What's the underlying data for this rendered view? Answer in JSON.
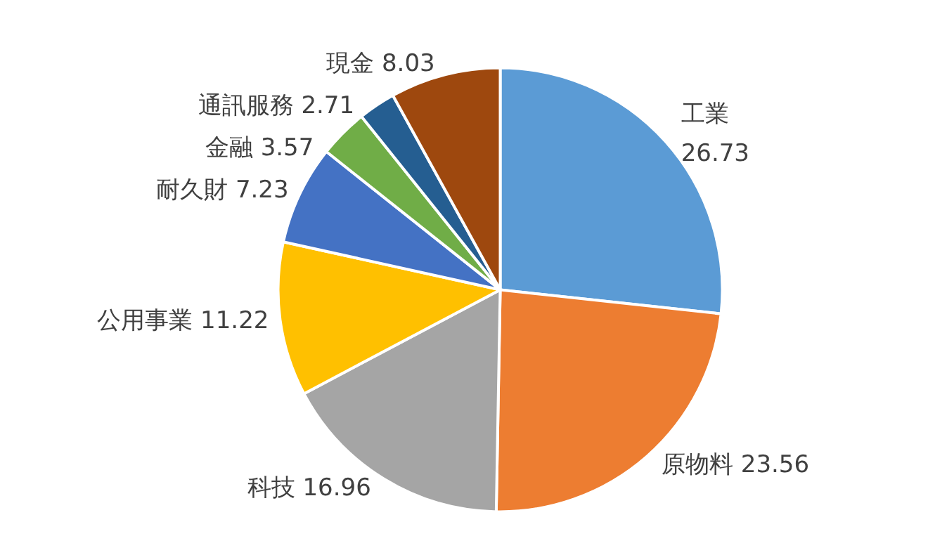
{
  "chart_data": {
    "type": "pie",
    "categories": [
      "工業",
      "原物料",
      "科技",
      "公用事業",
      "耐久財",
      "金融",
      "通訊服務",
      "現金"
    ],
    "values": [
      26.73,
      23.56,
      16.96,
      11.22,
      7.23,
      3.57,
      2.71,
      8.03
    ],
    "colors": [
      "#5b9bd5",
      "#ed7d31",
      "#a5a5a5",
      "#ffc000",
      "#4472c4",
      "#70ad47",
      "#255e91",
      "#9e480e"
    ],
    "data_labels": true,
    "legend": false
  }
}
